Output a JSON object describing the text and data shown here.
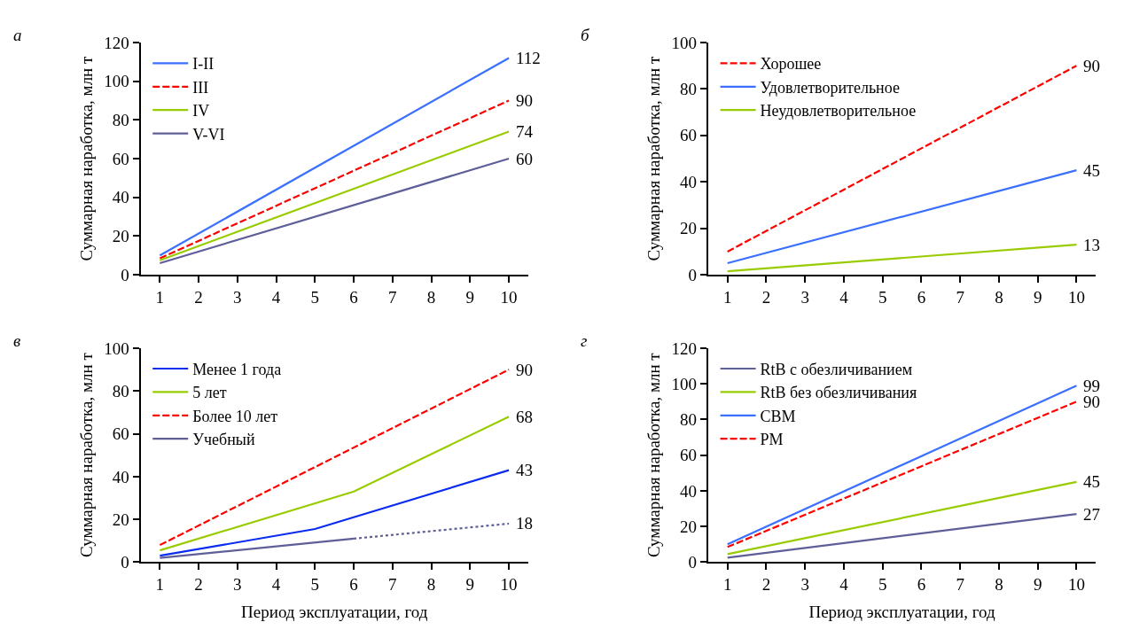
{
  "chart_data": [
    {
      "type": "line",
      "title": "а",
      "ylabel": "Суммарная наработка, млн т",
      "xlim": [
        0.5,
        10.5
      ],
      "xticks": [
        1,
        2,
        3,
        4,
        5,
        6,
        7,
        8,
        9,
        10
      ],
      "ylim": [
        0,
        120
      ],
      "yticks": [
        0,
        20,
        40,
        60,
        80,
        100,
        120
      ],
      "legend": "top left",
      "marker": "none",
      "series": [
        {
          "name": "I-II",
          "color": "#3a6fff",
          "x": [
            1,
            10
          ],
          "values": [
            10,
            112
          ],
          "value_labels": [
            null,
            "112"
          ]
        },
        {
          "name": "III",
          "color": "#ff0000",
          "line_style": "dashed",
          "x": [
            1,
            10
          ],
          "values": [
            8.5,
            90
          ],
          "value_labels": [
            null,
            "90"
          ]
        },
        {
          "name": "IV",
          "color": "#99cc00",
          "x": [
            1,
            10
          ],
          "values": [
            7.5,
            74
          ],
          "value_labels": [
            null,
            "74"
          ]
        },
        {
          "name": "V-VI",
          "color": "#5e5e99",
          "x": [
            1,
            10
          ],
          "values": [
            6,
            60
          ],
          "value_labels": [
            null,
            "60"
          ]
        }
      ]
    },
    {
      "type": "line",
      "title": "б",
      "ylabel": "Суммарная наработка, млн т",
      "xlim": [
        0.5,
        10.5
      ],
      "xticks": [
        1,
        2,
        3,
        4,
        5,
        6,
        7,
        8,
        9,
        10
      ],
      "ylim": [
        0,
        100
      ],
      "yticks": [
        0,
        20,
        40,
        60,
        80,
        100
      ],
      "legend": "top left",
      "marker": "none",
      "series": [
        {
          "name": "Хорошее",
          "color": "#ff0000",
          "line_style": "dashed",
          "x": [
            1,
            10
          ],
          "values": [
            10,
            90
          ],
          "value_labels": [
            null,
            "90"
          ]
        },
        {
          "name": "Удовлетворительное",
          "color": "#3a6fff",
          "x": [
            1,
            10
          ],
          "values": [
            5,
            45
          ],
          "value_labels": [
            null,
            "45"
          ]
        },
        {
          "name": "Неудовлетворительное",
          "color": "#99cc00",
          "x": [
            1,
            10
          ],
          "values": [
            1.5,
            13
          ],
          "value_labels": [
            null,
            "13"
          ]
        }
      ]
    },
    {
      "type": "line",
      "title": "в",
      "xlabel": "Период эксплуатации, год",
      "ylabel": "Суммарная наработка, млн т",
      "xlim": [
        0.5,
        10.5
      ],
      "xticks": [
        1,
        2,
        3,
        4,
        5,
        6,
        7,
        8,
        9,
        10
      ],
      "ylim": [
        0,
        100
      ],
      "yticks": [
        0,
        20,
        40,
        60,
        80,
        100
      ],
      "legend": "top left",
      "marker": "none",
      "series": [
        {
          "name": "Менее 1 года",
          "color": "#0a2cf0",
          "x": [
            1,
            5,
            10
          ],
          "values": [
            3,
            15.5,
            43
          ],
          "value_labels": [
            null,
            null,
            "43"
          ]
        },
        {
          "name": "5 лет",
          "color": "#99cc00",
          "x": [
            1,
            6,
            10
          ],
          "values": [
            5.5,
            33,
            68
          ],
          "value_labels": [
            null,
            null,
            "68"
          ]
        },
        {
          "name": "Более 10 лет",
          "color": "#ff0000",
          "line_style": "dashed",
          "x": [
            1,
            10
          ],
          "values": [
            8,
            90
          ],
          "value_labels": [
            null,
            "90"
          ]
        },
        {
          "name": "Учебный",
          "color": "#5e5e99",
          "x": [
            1,
            6
          ],
          "values": [
            2,
            11
          ]
        },
        {
          "color": "#5e5e99",
          "line_style": "dotted",
          "x": [
            6,
            10
          ],
          "values": [
            11,
            18
          ],
          "value_labels": [
            null,
            "18"
          ]
        }
      ]
    },
    {
      "type": "line",
      "title": "г",
      "xlabel": "Период эксплуатации, год",
      "ylabel": "Суммарная наработка, млн т",
      "xlim": [
        0.5,
        10.5
      ],
      "xticks": [
        1,
        2,
        3,
        4,
        5,
        6,
        7,
        8,
        9,
        10
      ],
      "ylim": [
        0,
        120
      ],
      "yticks": [
        0,
        20,
        40,
        60,
        80,
        100,
        120
      ],
      "legend": "top left",
      "marker": "none",
      "series": [
        {
          "name": "RtB с обезличиванием",
          "color": "#5e5e99",
          "x": [
            1,
            10
          ],
          "values": [
            2.5,
            27
          ],
          "value_labels": [
            null,
            "27"
          ]
        },
        {
          "name": "RtB без обезличивания",
          "color": "#99cc00",
          "x": [
            1,
            10
          ],
          "values": [
            4.5,
            45
          ],
          "value_labels": [
            null,
            "45"
          ]
        },
        {
          "name": "СВМ",
          "color": "#3a6fff",
          "x": [
            1,
            10
          ],
          "values": [
            10,
            99
          ],
          "value_labels": [
            null,
            "99"
          ]
        },
        {
          "name": "РМ",
          "color": "#ff0000",
          "line_style": "dashed",
          "x": [
            1,
            10
          ],
          "values": [
            8.5,
            90
          ],
          "value_labels": [
            null,
            "90"
          ]
        }
      ]
    }
  ]
}
